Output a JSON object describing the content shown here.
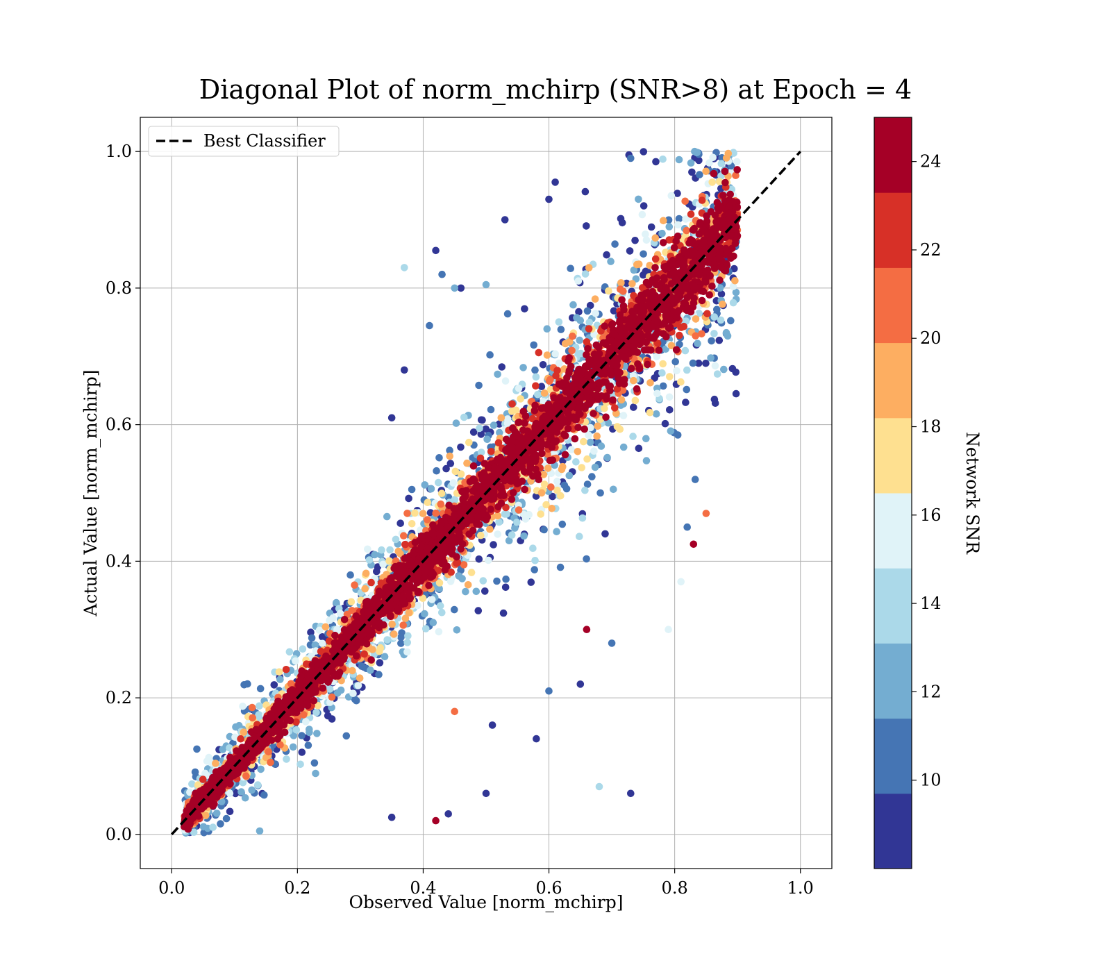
{
  "chart_data": {
    "type": "scatter",
    "title": "Diagonal Plot of norm_mchirp (SNR>8) at Epoch = 4",
    "xlabel": "Observed Value [norm_mchirp]",
    "ylabel": "Actual Value [norm_mchirp]",
    "xlim": [
      -0.05,
      1.05
    ],
    "ylim": [
      -0.05,
      1.05
    ],
    "xticks": [
      "0.0",
      "0.2",
      "0.4",
      "0.6",
      "0.8",
      "1.0"
    ],
    "yticks": [
      "0.0",
      "0.2",
      "0.4",
      "0.6",
      "0.8",
      "1.0"
    ],
    "grid": true,
    "legend": {
      "position": "top-left",
      "entries": [
        "Best Classifier"
      ]
    },
    "reference_line": {
      "name": "Best Classifier",
      "x": [
        0.0,
        1.0
      ],
      "y": [
        0.0,
        1.0
      ],
      "style": "dashed",
      "color": "#000000"
    },
    "colorbar": {
      "label": "Network SNR",
      "range": [
        8,
        25
      ],
      "ticks": [
        "10",
        "12",
        "14",
        "16",
        "18",
        "20",
        "22",
        "24"
      ],
      "colors": [
        "#313695",
        "#4575b4",
        "#74add1",
        "#abd9e9",
        "#e0f3f8",
        "#fee090",
        "#fdae61",
        "#f46d43",
        "#d73027",
        "#a50026"
      ]
    },
    "points_description_values": {
      "n_points_approx": 20000,
      "x_range": [
        0.02,
        0.9
      ],
      "y_range": [
        0.0,
        1.0
      ],
      "trend": "y ≈ x"
    },
    "outliers": [
      {
        "x": 0.42,
        "y": 0.855,
        "snr": 9
      },
      {
        "x": 0.43,
        "y": 0.82,
        "snr": 10
      },
      {
        "x": 0.37,
        "y": 0.83,
        "snr": 14
      },
      {
        "x": 0.61,
        "y": 0.955,
        "snr": 9
      },
      {
        "x": 0.53,
        "y": 0.9,
        "snr": 9
      },
      {
        "x": 0.45,
        "y": 0.8,
        "snr": 12
      },
      {
        "x": 0.46,
        "y": 0.8,
        "snr": 9
      },
      {
        "x": 0.5,
        "y": 0.805,
        "snr": 13
      },
      {
        "x": 0.41,
        "y": 0.745,
        "snr": 10
      },
      {
        "x": 0.6,
        "y": 0.93,
        "snr": 9
      },
      {
        "x": 0.85,
        "y": 0.47,
        "snr": 21
      },
      {
        "x": 0.82,
        "y": 0.45,
        "snr": 10
      },
      {
        "x": 0.83,
        "y": 0.425,
        "snr": 25
      },
      {
        "x": 0.81,
        "y": 0.37,
        "snr": 16
      },
      {
        "x": 0.79,
        "y": 0.3,
        "snr": 16
      },
      {
        "x": 0.68,
        "y": 0.07,
        "snr": 14
      },
      {
        "x": 0.73,
        "y": 0.06,
        "snr": 9
      },
      {
        "x": 0.58,
        "y": 0.14,
        "snr": 9
      },
      {
        "x": 0.65,
        "y": 0.22,
        "snr": 9
      },
      {
        "x": 0.6,
        "y": 0.21,
        "snr": 10
      },
      {
        "x": 0.42,
        "y": 0.02,
        "snr": 25
      },
      {
        "x": 0.35,
        "y": 0.025,
        "snr": 9
      },
      {
        "x": 0.14,
        "y": 0.005,
        "snr": 12
      },
      {
        "x": 0.45,
        "y": 0.18,
        "snr": 20
      },
      {
        "x": 0.5,
        "y": 0.06,
        "snr": 9
      },
      {
        "x": 0.44,
        "y": 0.03,
        "snr": 9
      },
      {
        "x": 0.51,
        "y": 0.16,
        "snr": 9
      },
      {
        "x": 0.7,
        "y": 0.28,
        "snr": 10
      },
      {
        "x": 0.66,
        "y": 0.3,
        "snr": 24
      },
      {
        "x": 0.35,
        "y": 0.61,
        "snr": 9
      },
      {
        "x": 0.37,
        "y": 0.68,
        "snr": 9
      },
      {
        "x": 0.77,
        "y": 0.985,
        "snr": 9
      },
      {
        "x": 0.73,
        "y": 0.99,
        "snr": 10
      }
    ]
  }
}
